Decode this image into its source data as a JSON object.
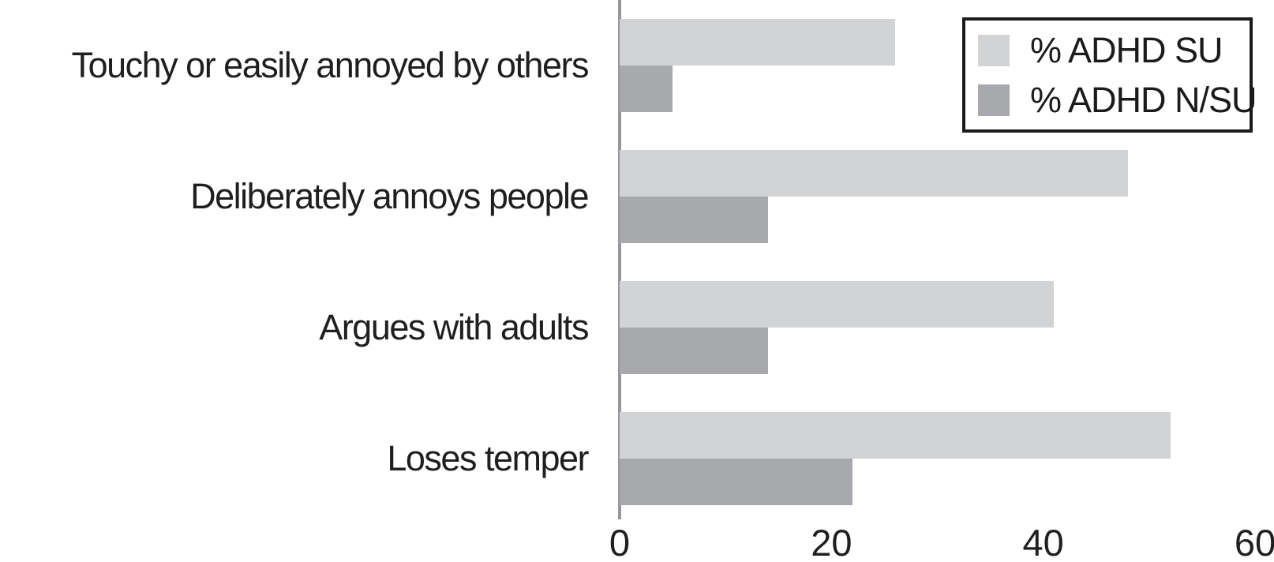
{
  "chart_data": {
    "type": "bar",
    "orientation": "horizontal",
    "title": "",
    "xlabel": "",
    "ylabel": "",
    "categories": [
      "Touchy or easily annoyed by others",
      "Deliberately annoys people",
      "Argues with adults",
      "Loses temper"
    ],
    "series": [
      {
        "name": "% ADHD SU",
        "color": "#d1d3d5",
        "values": [
          26,
          48,
          41,
          52
        ]
      },
      {
        "name": "% ADHD N/SU",
        "color": "#a7a9ac",
        "values": [
          5,
          14,
          14,
          22
        ]
      }
    ],
    "xlim": [
      0,
      60
    ],
    "xticks": [
      0,
      20,
      40,
      60
    ],
    "grid": false,
    "legend_position": "top-right",
    "axis_color": "#95979a",
    "text_color": "#1f1f1f"
  }
}
